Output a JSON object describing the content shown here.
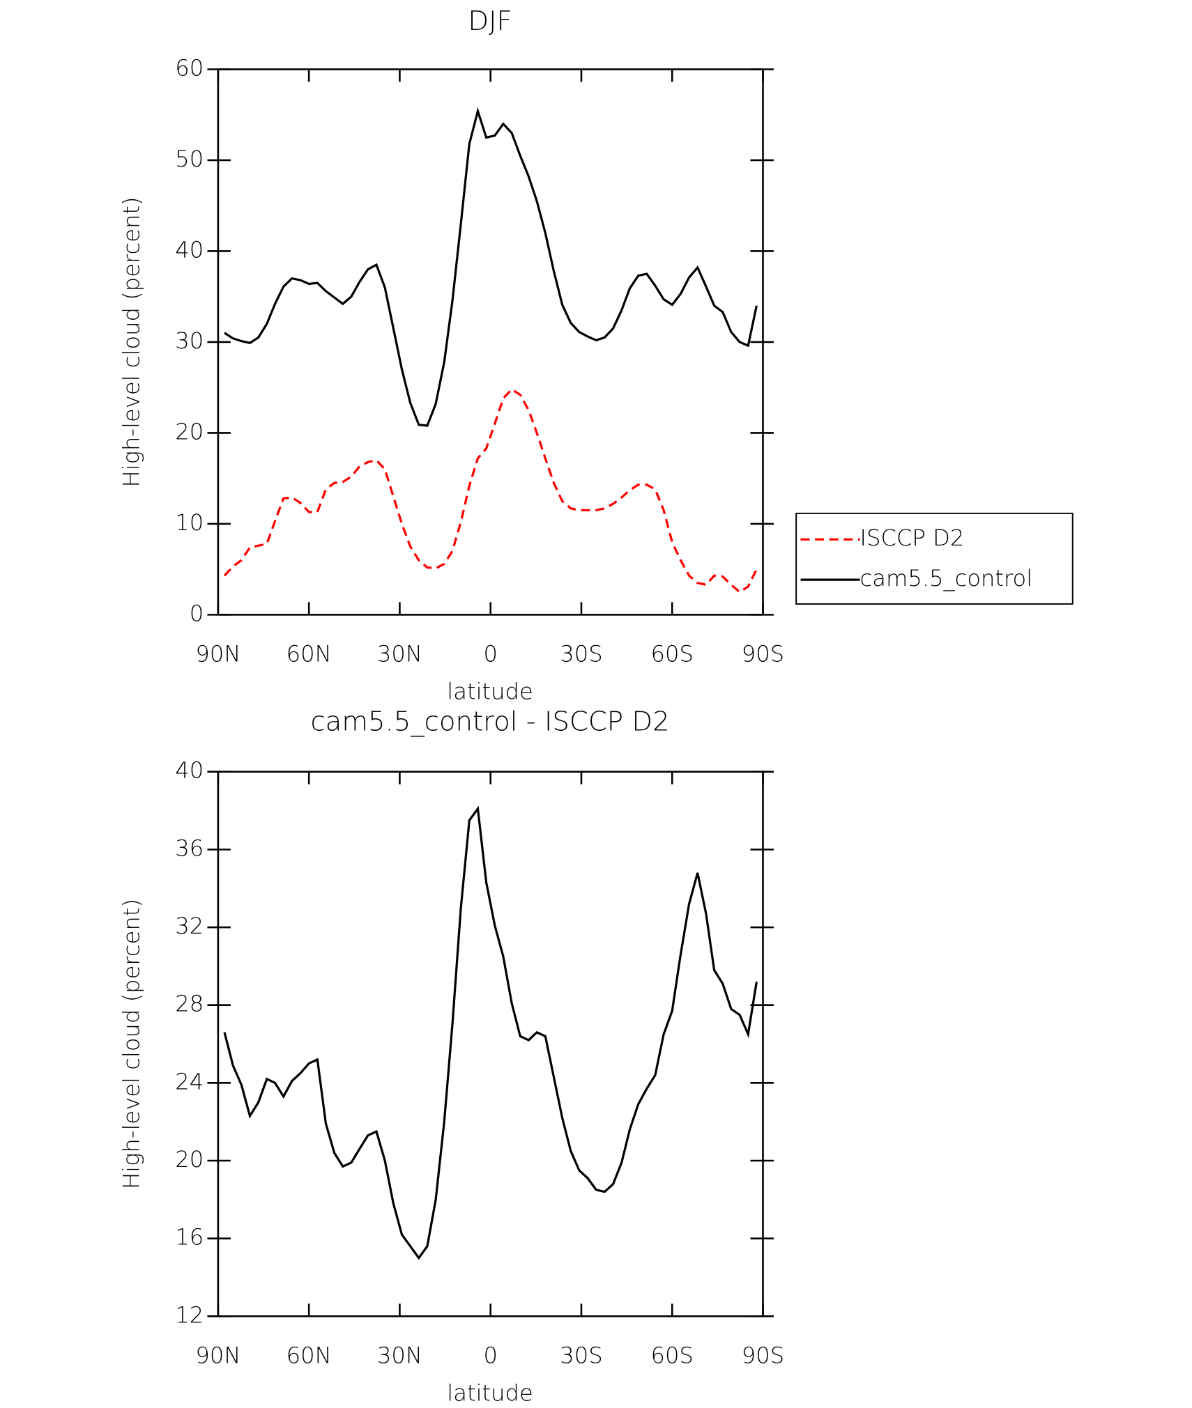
{
  "chart_data": [
    {
      "type": "line",
      "title": "DJF",
      "xlabel": "latitude",
      "ylabel": "High-level cloud (percent)",
      "xlim": [
        90,
        -90
      ],
      "xticks": [
        {
          "value": 90,
          "label": "90N"
        },
        {
          "value": 60,
          "label": "60N"
        },
        {
          "value": 30,
          "label": "30N"
        },
        0,
        {
          "value": -30,
          "label": "30S"
        },
        {
          "value": -60,
          "label": "60S"
        },
        {
          "value": -90,
          "label": "90S"
        }
      ],
      "ylim": [
        0,
        60
      ],
      "yticks": [
        0,
        10,
        20,
        30,
        40,
        50,
        60
      ],
      "x": [
        87.9,
        85.1,
        82.3,
        79.5,
        76.7,
        73.9,
        71.2,
        68.4,
        65.6,
        62.8,
        60.0,
        57.2,
        54.4,
        51.6,
        48.8,
        46.0,
        43.3,
        40.5,
        37.7,
        34.9,
        32.1,
        29.3,
        26.5,
        23.7,
        20.9,
        18.1,
        15.3,
        12.6,
        9.8,
        7.0,
        4.2,
        1.4,
        -1.4,
        -4.2,
        -7.0,
        -9.8,
        -12.6,
        -15.3,
        -18.1,
        -20.9,
        -23.7,
        -26.5,
        -29.3,
        -32.1,
        -34.9,
        -37.7,
        -40.5,
        -43.3,
        -46.0,
        -48.8,
        -51.6,
        -54.4,
        -57.2,
        -60.0,
        -62.8,
        -65.6,
        -68.4,
        -71.2,
        -73.9,
        -76.7,
        -79.5,
        -82.3,
        -85.1,
        -87.9
      ],
      "legend": "right",
      "series": [
        {
          "name": "ISCCP D2",
          "color": "#ff0000",
          "dash": true,
          "values": [
            4.3,
            5.3,
            6,
            7.4,
            7.6,
            7.8,
            10.3,
            12.8,
            12.9,
            12.3,
            11.3,
            11.3,
            13.8,
            14.5,
            14.6,
            15.2,
            16.3,
            16.8,
            17,
            16,
            13,
            10,
            7.5,
            6,
            5.2,
            5.1,
            5.6,
            7,
            10.2,
            14.2,
            17.2,
            18.3,
            21,
            23.8,
            24.8,
            24.2,
            22.5,
            20,
            17.2,
            14.5,
            12.5,
            11.7,
            11.5,
            11.5,
            11.5,
            11.7,
            12.2,
            12.9,
            13.7,
            14.3,
            14.3,
            13.8,
            11.5,
            8,
            6,
            4.3,
            3.5,
            3.3,
            4.3,
            4.2,
            3.3,
            2.5,
            3.1,
            5
          ]
        },
        {
          "name": "cam5.5_control",
          "color": "#000000",
          "dash": false,
          "values": [
            31,
            30.4,
            30.1,
            29.9,
            30.5,
            32,
            34.2,
            36.1,
            37,
            36.8,
            36.4,
            36.5,
            35.6,
            34.9,
            34.2,
            35,
            36.6,
            38,
            38.5,
            36,
            31.5,
            27,
            23.3,
            20.9,
            20.8,
            23.2,
            27.8,
            34.5,
            43,
            51.8,
            55.4,
            52.5,
            52.7,
            54,
            53,
            50.5,
            48.2,
            45.5,
            42,
            37.8,
            34.1,
            32.1,
            31.1,
            30.6,
            30.2,
            30.5,
            31.5,
            33.5,
            35.9,
            37.3,
            37.5,
            36.2,
            34.7,
            34.1,
            35.3,
            37.1,
            38.2,
            36.1,
            34,
            33.3,
            31.1,
            30,
            29.6,
            34
          ]
        }
      ]
    },
    {
      "type": "line",
      "title": "cam5.5_control - ISCCP D2",
      "xlabel": "latitude",
      "ylabel": "High-level cloud (percent)",
      "xlim": [
        90,
        -90
      ],
      "xticks": [
        {
          "value": 90,
          "label": "90N"
        },
        {
          "value": 60,
          "label": "60N"
        },
        {
          "value": 30,
          "label": "30N"
        },
        0,
        {
          "value": -30,
          "label": "30S"
        },
        {
          "value": -60,
          "label": "60S"
        },
        {
          "value": -90,
          "label": "90S"
        }
      ],
      "ylim": [
        12,
        40
      ],
      "yticks": [
        12,
        16,
        20,
        24,
        28,
        32,
        36,
        40
      ],
      "x": [
        87.9,
        85.1,
        82.3,
        79.5,
        76.7,
        73.9,
        71.2,
        68.4,
        65.6,
        62.8,
        60.0,
        57.2,
        54.4,
        51.6,
        48.8,
        46.0,
        43.3,
        40.5,
        37.7,
        34.9,
        32.1,
        29.3,
        26.5,
        23.7,
        20.9,
        18.1,
        15.3,
        12.6,
        9.8,
        7.0,
        4.2,
        1.4,
        -1.4,
        -4.2,
        -7.0,
        -9.8,
        -12.6,
        -15.3,
        -18.1,
        -20.9,
        -23.7,
        -26.5,
        -29.3,
        -32.1,
        -34.9,
        -37.7,
        -40.5,
        -43.3,
        -46.0,
        -48.8,
        -51.6,
        -54.4,
        -57.2,
        -60.0,
        -62.8,
        -65.6,
        -68.4,
        -71.2,
        -73.9,
        -76.7,
        -79.5,
        -82.3,
        -85.1,
        -87.9
      ],
      "color": "#000000",
      "values": [
        26.6,
        24.9,
        23.9,
        22.3,
        23,
        24.2,
        24,
        23.3,
        24.1,
        24.5,
        25,
        25.2,
        21.9,
        20.4,
        19.7,
        19.9,
        20.6,
        21.3,
        21.5,
        20,
        17.8,
        16.2,
        15.6,
        15,
        15.6,
        18,
        22,
        27,
        33,
        37.5,
        38.1,
        34.3,
        32.1,
        30.5,
        28.1,
        26.4,
        26.2,
        26.6,
        26.4,
        24.3,
        22.2,
        20.5,
        19.5,
        19.1,
        18.5,
        18.4,
        18.8,
        19.9,
        21.6,
        22.9,
        23.7,
        24.4,
        26.5,
        27.7,
        30.6,
        33.2,
        34.8,
        32.7,
        29.8,
        29.1,
        27.8,
        27.5,
        26.5,
        29.2
      ]
    }
  ]
}
